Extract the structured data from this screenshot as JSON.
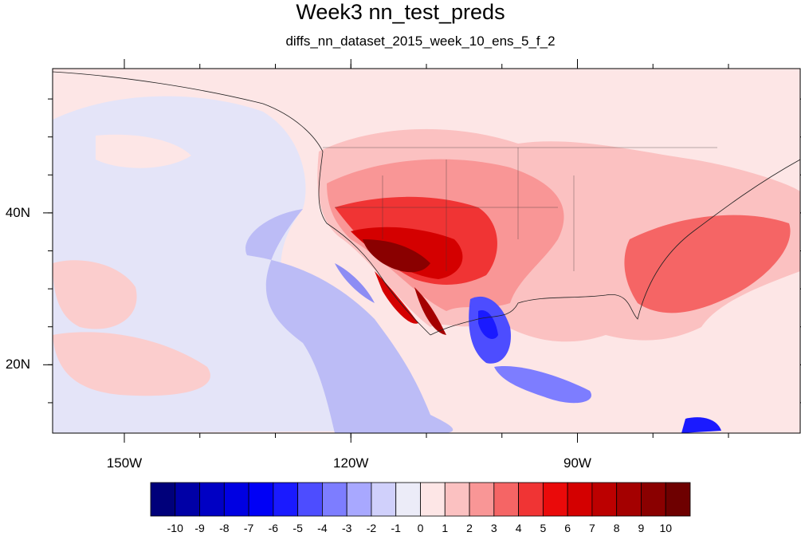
{
  "title": "Week3 nn_test_preds",
  "subtitle": "diffs_nn_dataset_2015_week_10_ens_5_f_2",
  "axes": {
    "x_ticks": [
      {
        "lon": -150,
        "label": "150W"
      },
      {
        "lon": -120,
        "label": "120W"
      },
      {
        "lon": -90,
        "label": "90W"
      }
    ],
    "y_ticks": [
      {
        "lat": 40,
        "label": "40N"
      },
      {
        "lat": 20,
        "label": "20N"
      }
    ],
    "lon_range": [
      -159.5,
      -60.5
    ],
    "lat_range": [
      11,
      59
    ]
  },
  "colorbar": {
    "labels": [
      "-10",
      "-9",
      "-8",
      "-7",
      "-6",
      "-5",
      "-4",
      "-3",
      "-2",
      "-1",
      "0",
      "1",
      "2",
      "3",
      "4",
      "5",
      "6",
      "7",
      "8",
      "9",
      "10"
    ],
    "colors": [
      "#00007a",
      "#0000a6",
      "#0000c4",
      "#0000e2",
      "#0000f6",
      "#1a1aff",
      "#4d4dff",
      "#7d7dff",
      "#a8a8ff",
      "#d0d0fb",
      "#ececf8",
      "#fde6e6",
      "#fbc1c1",
      "#f99696",
      "#f56565",
      "#f03434",
      "#ea0a0a",
      "#d40000",
      "#bc0000",
      "#a40000",
      "#8a0000",
      "#6e0000"
    ]
  }
}
